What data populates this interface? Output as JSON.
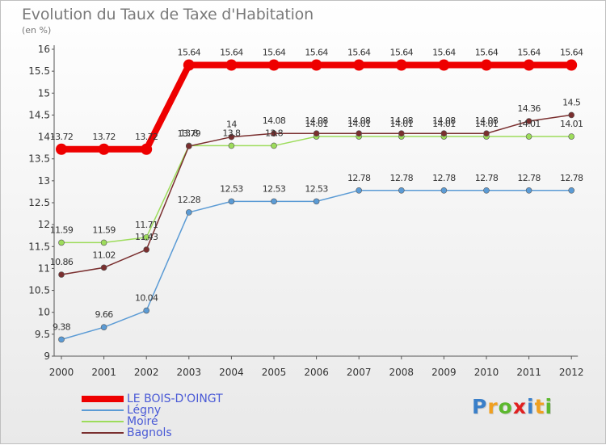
{
  "chart_data": {
    "type": "line",
    "title": "Evolution du Taux de Taxe d'Habitation",
    "subtitle": "(en %)",
    "x": [
      "2000",
      "2001",
      "2002",
      "2003",
      "2004",
      "2005",
      "2006",
      "2007",
      "2008",
      "2009",
      "2010",
      "2011",
      "2012"
    ],
    "ylim": [
      9,
      16
    ],
    "yticks": [
      "9",
      "9.5",
      "10",
      "10.5",
      "11",
      "11.5",
      "12",
      "12.5",
      "13",
      "13.5",
      "14",
      "14.5",
      "15",
      "15.5",
      "16"
    ],
    "grid": false,
    "legend_position": "bottom-left",
    "series": [
      {
        "name": "LE BOIS-D'OINGT",
        "color": "#ee0000",
        "values": [
          13.72,
          13.72,
          13.72,
          15.64,
          15.64,
          15.64,
          15.64,
          15.64,
          15.64,
          15.64,
          15.64,
          15.64,
          15.64
        ],
        "labels": [
          "13.72",
          "13.72",
          "13.72",
          "15.64",
          "15.64",
          "15.64",
          "15.64",
          "15.64",
          "15.64",
          "15.64",
          "15.64",
          "15.64",
          "15.64"
        ]
      },
      {
        "name": "Légny",
        "color": "#5b9bd5",
        "values": [
          9.38,
          9.66,
          10.04,
          12.28,
          12.53,
          12.53,
          12.53,
          12.78,
          12.78,
          12.78,
          12.78,
          12.78,
          12.78
        ],
        "labels": [
          "9.38",
          "9.66",
          "10.04",
          "12.28",
          "12.53",
          "12.53",
          "12.53",
          "12.78",
          "12.78",
          "12.78",
          "12.78",
          "12.78",
          "12.78"
        ]
      },
      {
        "name": "Moiré",
        "color": "#9ddc5b",
        "values": [
          11.59,
          11.59,
          11.71,
          13.8,
          13.8,
          13.8,
          14.01,
          14.01,
          14.01,
          14.01,
          14.01,
          14.01,
          14.01
        ],
        "labels": [
          "11.59",
          "11.59",
          "11.71",
          "13.8",
          "13.8",
          "13.8",
          "14.01",
          "14.01",
          "14.01",
          "14.01",
          "14.01",
          "14.01",
          "14.01"
        ]
      },
      {
        "name": "Bagnols",
        "color": "#7a2f2f",
        "values": [
          10.86,
          11.02,
          11.43,
          13.79,
          14.0,
          14.08,
          14.08,
          14.08,
          14.08,
          14.08,
          14.08,
          14.36,
          14.5
        ],
        "labels": [
          "10.86",
          "11.02",
          "11.43",
          "13.79",
          "14",
          "14.08",
          "14.08",
          "14.08",
          "14.08",
          "14.08",
          "14.08",
          "14.36",
          "14.5"
        ]
      }
    ]
  },
  "brand": {
    "letters": [
      "P",
      "r",
      "o",
      "x",
      "i",
      "t",
      "i"
    ],
    "colors": [
      "#3a7fc9",
      "#f0a020",
      "#5cb82e",
      "#e02020",
      "#3a7fc9",
      "#f0a020",
      "#5cb82e"
    ]
  }
}
